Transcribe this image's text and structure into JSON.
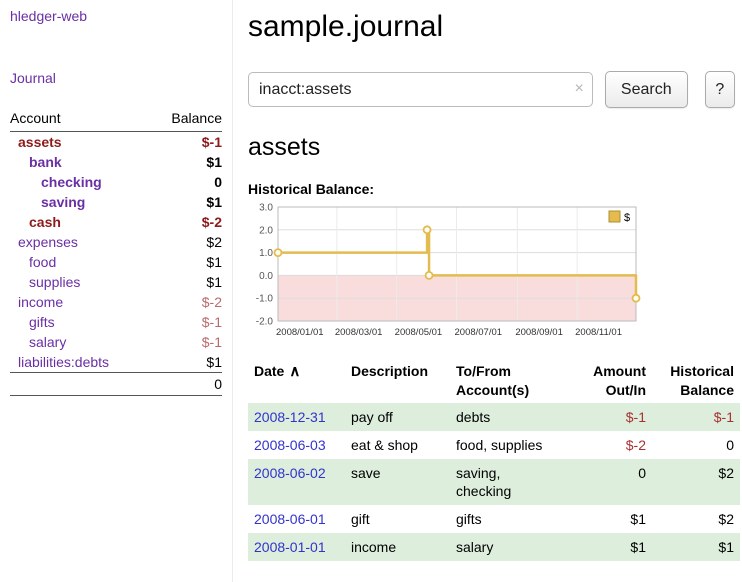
{
  "app": {
    "title": "hledger-web",
    "nav_journal": "Journal"
  },
  "colors": {
    "link_purple": "#6a2fa5",
    "date_blue": "#3333cc",
    "negative_red": "#a83232",
    "negative_dark_red": "#8e1b1b",
    "negative_soft_red": "#b96a6a",
    "row_stripe_green": "#ddeedd",
    "chart_line_gold": "#e3bb4e",
    "chart_negative_region_pink": "#f9dcdc"
  },
  "sidebar": {
    "headers": {
      "account": "Account",
      "balance": "Balance"
    },
    "rows": [
      {
        "account": "assets",
        "balance": "$-1"
      },
      {
        "account": "bank",
        "balance": "$1"
      },
      {
        "account": "checking",
        "balance": "0"
      },
      {
        "account": "saving",
        "balance": "$1"
      },
      {
        "account": "cash",
        "balance": "$-2"
      },
      {
        "account": "expenses",
        "balance": "$2"
      },
      {
        "account": "food",
        "balance": "$1"
      },
      {
        "account": "supplies",
        "balance": "$1"
      },
      {
        "account": "income",
        "balance": "$-2"
      },
      {
        "account": "gifts",
        "balance": "$-1"
      },
      {
        "account": "salary",
        "balance": "$-1"
      },
      {
        "account": "liabilities:debts",
        "balance": "$1"
      }
    ],
    "total": "0"
  },
  "main": {
    "title": "sample.journal",
    "search": {
      "value": "inacct:assets",
      "clear": "×",
      "button": "Search",
      "help": "?"
    },
    "account_heading": "assets",
    "chart_heading": "Historical Balance:"
  },
  "chart_data": {
    "type": "line",
    "step": true,
    "title": "Historical Balance",
    "xlim": [
      "2008/01/01",
      "2008/12/31"
    ],
    "ylim": [
      -2,
      3
    ],
    "yticks": [
      -2,
      -1,
      0,
      1,
      2,
      3
    ],
    "xticks": [
      "2008/01/01",
      "2008/03/01",
      "2008/05/01",
      "2008/07/01",
      "2008/09/01",
      "2008/11/01"
    ],
    "negative_region_color": "#f9dcdc",
    "legend_position": "top-right",
    "series": [
      {
        "name": "$",
        "color": "#e3bb4e",
        "points": [
          [
            "2008/01/01",
            1
          ],
          [
            "2008/06/01",
            2
          ],
          [
            "2008/06/03",
            0
          ],
          [
            "2008/12/31",
            -1
          ]
        ]
      }
    ]
  },
  "register": {
    "sort_icon": "∧",
    "headers": {
      "date": "Date",
      "description": "Description",
      "tofrom": "To/From\nAccount(s)",
      "amount": "Amount\nOut/In",
      "balance": "Historical\nBalance"
    },
    "rows": [
      {
        "date": "2008-12-31",
        "description": "pay off",
        "tofrom": "debts",
        "amount": "$-1",
        "balance": "$-1"
      },
      {
        "date": "2008-06-03",
        "description": "eat & shop",
        "tofrom": "food, supplies",
        "amount": "$-2",
        "balance": "0"
      },
      {
        "date": "2008-06-02",
        "description": "save",
        "tofrom": "saving,\nchecking",
        "amount": "0",
        "balance": "$2"
      },
      {
        "date": "2008-06-01",
        "description": "gift",
        "tofrom": "gifts",
        "amount": "$1",
        "balance": "$2"
      },
      {
        "date": "2008-01-01",
        "description": "income",
        "tofrom": "salary",
        "amount": "$1",
        "balance": "$1"
      }
    ]
  }
}
